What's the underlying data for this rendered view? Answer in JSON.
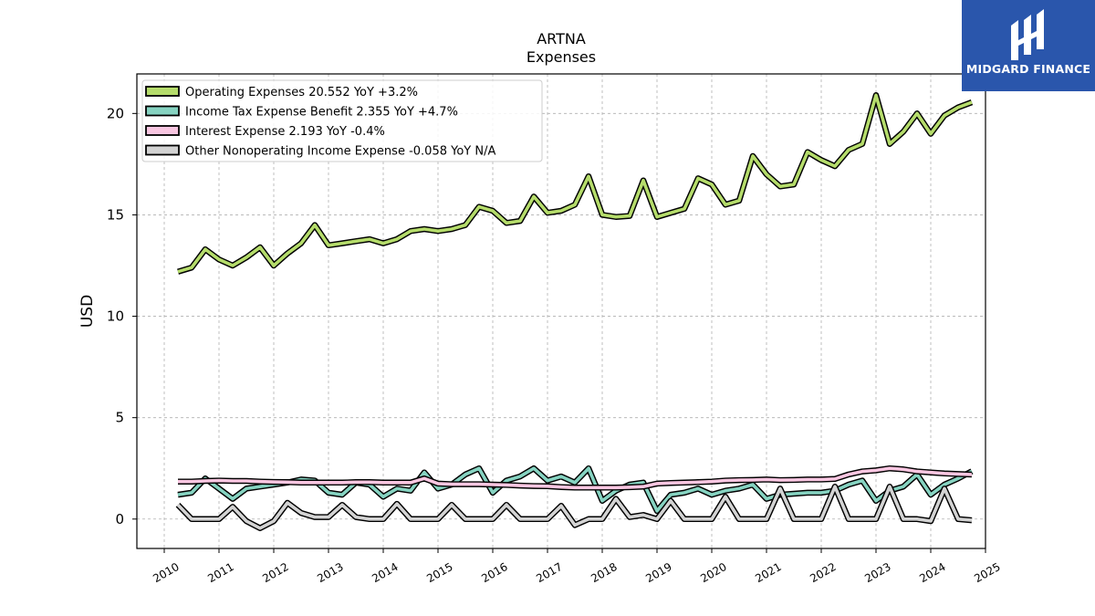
{
  "brand": {
    "name": "MIDGARD FINANCE",
    "logo_icon": "midgard-logo-icon",
    "background": "#2a56ac"
  },
  "chart_data": {
    "type": "line",
    "title": "ARTNA",
    "subtitle": "Expenses",
    "xlabel": "",
    "ylabel": "USD",
    "xlim": [
      2009.5,
      2025.0
    ],
    "ylim": [
      -1.45,
      21.95
    ],
    "x_ticks": [
      "2010",
      "2011",
      "2012",
      "2013",
      "2014",
      "2015",
      "2016",
      "2017",
      "2018",
      "2019",
      "2020",
      "2021",
      "2022",
      "2023",
      "2024",
      "2025"
    ],
    "y_ticks": [
      0,
      5,
      10,
      15,
      20
    ],
    "grid": true,
    "legend_position": "top-left",
    "x": [
      2010.25,
      2010.5,
      2010.75,
      2011.0,
      2011.25,
      2011.5,
      2011.75,
      2012.0,
      2012.25,
      2012.5,
      2012.75,
      2013.0,
      2013.25,
      2013.5,
      2013.75,
      2014.0,
      2014.25,
      2014.5,
      2014.75,
      2015.0,
      2015.25,
      2015.5,
      2015.75,
      2016.0,
      2016.25,
      2016.5,
      2016.75,
      2017.0,
      2017.25,
      2017.5,
      2017.75,
      2018.0,
      2018.25,
      2018.5,
      2018.75,
      2019.0,
      2019.25,
      2019.5,
      2019.75,
      2020.0,
      2020.25,
      2020.5,
      2020.75,
      2021.0,
      2021.25,
      2021.5,
      2021.75,
      2022.0,
      2022.25,
      2022.5,
      2022.75,
      2023.0,
      2023.25,
      2023.5,
      2023.75,
      2024.0,
      2024.25,
      2024.5,
      2024.75
    ],
    "series": [
      {
        "name": "Operating Expenses",
        "legend": "Operating Expenses  20.552 YoY +3.2%",
        "color": "#b5dc6b",
        "values": [
          12.2,
          12.4,
          13.3,
          12.8,
          12.5,
          12.9,
          13.4,
          12.5,
          13.1,
          13.6,
          14.5,
          13.5,
          13.6,
          13.7,
          13.8,
          13.6,
          13.8,
          14.2,
          14.3,
          14.2,
          14.3,
          14.5,
          15.4,
          15.2,
          14.6,
          14.7,
          15.9,
          15.1,
          15.2,
          15.5,
          16.9,
          15.0,
          14.9,
          14.95,
          16.7,
          14.9,
          15.1,
          15.3,
          16.8,
          16.5,
          15.5,
          15.7,
          17.9,
          17.0,
          16.4,
          16.5,
          18.1,
          17.7,
          17.4,
          18.2,
          18.5,
          20.9,
          18.5,
          19.1,
          20.0,
          19.0,
          19.9,
          20.3,
          20.552
        ]
      },
      {
        "name": "Income Tax Expense Benefit",
        "legend": "Income Tax Expense Benefit  2.355 YoY +4.7%",
        "color": "#86d3c1",
        "values": [
          1.2,
          1.3,
          2.0,
          1.5,
          1.0,
          1.5,
          1.6,
          1.7,
          1.8,
          1.95,
          1.9,
          1.3,
          1.2,
          1.8,
          1.7,
          1.1,
          1.5,
          1.4,
          2.3,
          1.5,
          1.7,
          2.2,
          2.5,
          1.3,
          1.9,
          2.1,
          2.5,
          1.9,
          2.1,
          1.8,
          2.5,
          0.9,
          1.4,
          1.7,
          1.8,
          0.4,
          1.2,
          1.3,
          1.5,
          1.2,
          1.4,
          1.5,
          1.7,
          1.0,
          1.2,
          1.25,
          1.3,
          1.3,
          1.4,
          1.7,
          1.9,
          0.9,
          1.4,
          1.6,
          2.2,
          1.2,
          1.7,
          2.0,
          2.355
        ]
      },
      {
        "name": "Interest Expense",
        "legend": "Interest Expense  2.193 YoY -0.4%",
        "color": "#f9c6e1",
        "values": [
          1.85,
          1.85,
          1.88,
          1.9,
          1.88,
          1.88,
          1.85,
          1.83,
          1.82,
          1.8,
          1.8,
          1.8,
          1.8,
          1.82,
          1.82,
          1.8,
          1.8,
          1.8,
          2.0,
          1.75,
          1.72,
          1.72,
          1.72,
          1.7,
          1.68,
          1.65,
          1.63,
          1.62,
          1.58,
          1.55,
          1.55,
          1.55,
          1.55,
          1.57,
          1.6,
          1.75,
          1.78,
          1.8,
          1.82,
          1.85,
          1.9,
          1.92,
          1.93,
          1.95,
          1.92,
          1.93,
          1.95,
          1.95,
          1.98,
          2.2,
          2.35,
          2.4,
          2.5,
          2.45,
          2.35,
          2.3,
          2.25,
          2.22,
          2.193
        ]
      },
      {
        "name": "Other Nonoperating Income Expense",
        "legend": "Other Nonoperating Income Expense  -0.058 YoY N/A",
        "color": "#d3d3d3",
        "values": [
          0.7,
          0.0,
          0.0,
          0.0,
          0.6,
          -0.1,
          -0.45,
          -0.1,
          0.8,
          0.3,
          0.1,
          0.1,
          0.7,
          0.1,
          0.0,
          0.0,
          0.75,
          0.0,
          0.0,
          0.0,
          0.7,
          0.0,
          0.0,
          0.0,
          0.7,
          0.0,
          0.0,
          0.0,
          0.65,
          -0.3,
          0.0,
          0.0,
          1.0,
          0.1,
          0.2,
          0.0,
          0.9,
          0.0,
          0.0,
          0.0,
          1.1,
          0.0,
          0.0,
          0.0,
          1.5,
          0.0,
          0.0,
          0.0,
          1.6,
          0.0,
          0.0,
          0.0,
          1.6,
          0.0,
          0.0,
          -0.1,
          1.5,
          0.0,
          -0.058
        ]
      }
    ]
  }
}
